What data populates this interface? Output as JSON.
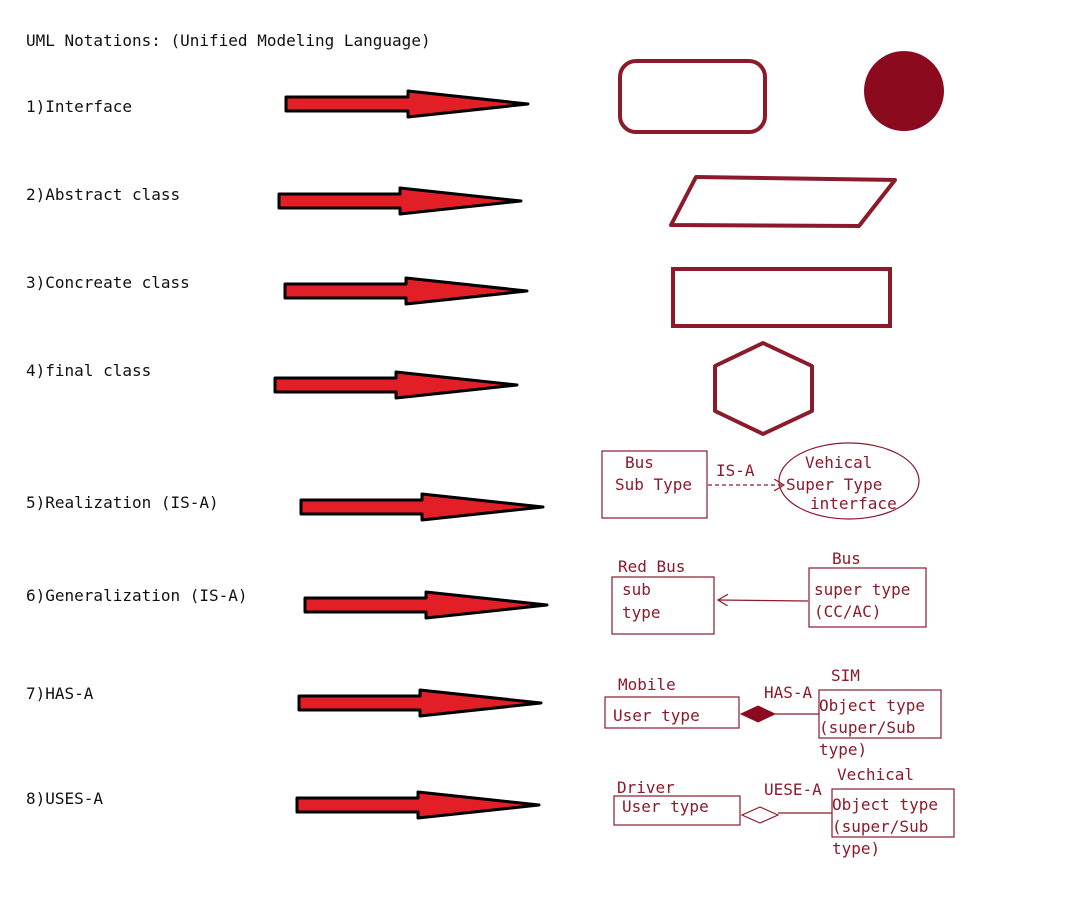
{
  "title": "UML Notations: (Unified Modeling Language)",
  "colors": {
    "arrow_fill": "#e21f26",
    "arrow_outline": "#000000",
    "shape_stroke": "#8b1a2b",
    "shape_fill_dark": "#8b0a1e",
    "label_text": "#111111",
    "diagram_text": "#8b1a2b"
  },
  "rows": [
    {
      "label": "1)Interface",
      "notation": "rounded-rectangle-and-filled-circle"
    },
    {
      "label": "2)Abstract class",
      "notation": "parallelogram"
    },
    {
      "label": "3)Concreate class",
      "notation": "rectangle"
    },
    {
      "label": "4)final class",
      "notation": "hexagon"
    },
    {
      "label": "5)Realization (IS-A)",
      "notation": "dashed-arrow-to-interface"
    },
    {
      "label": "6)Generalization (IS-A)",
      "notation": "solid-arrow-to-superclass"
    },
    {
      "label": "7)HAS-A",
      "notation": "filled-diamond-composition"
    },
    {
      "label": "8)USES-A",
      "notation": "hollow-diamond-aggregation"
    }
  ],
  "realization": {
    "sub_title": "Bus",
    "sub_text": "Sub Type",
    "relation": "IS-A",
    "super_title": "Vehical",
    "super_text": "Super Type",
    "super_kind": "interface"
  },
  "generalization": {
    "sub_title": "Red Bus",
    "sub_line1": "sub",
    "sub_line2": "type",
    "super_title": "Bus",
    "super_line1": "super type",
    "super_line2": "(CC/AC)"
  },
  "has_a": {
    "owner_title": "Mobile",
    "owner_text": "User type",
    "relation": "HAS-A",
    "part_title": "SIM",
    "part_line1": "Object type",
    "part_line2": "(super/Sub",
    "part_line3": "type)"
  },
  "uses_a": {
    "owner_title": "Driver",
    "owner_text": "User type",
    "relation": "UESE-A",
    "part_title": "Vechical",
    "part_line1": "Object type",
    "part_line2": "(super/Sub",
    "part_line3": "type)"
  }
}
